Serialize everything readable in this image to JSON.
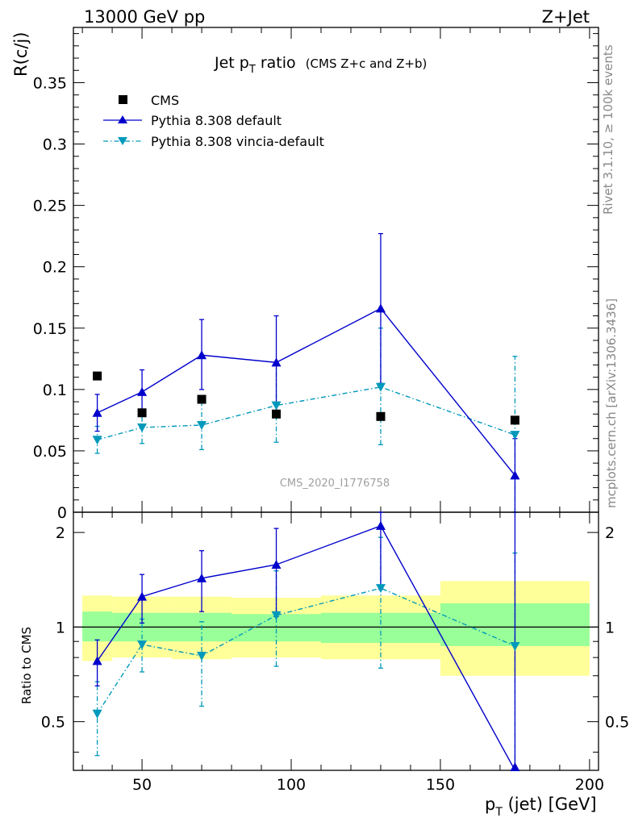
{
  "header": {
    "left_label": "13000 GeV pp",
    "right_label": "Z+Jet"
  },
  "side_labels": {
    "top": "Rivet 3.1.10, ≥ 100k events",
    "bottom": "mcplots.cern.ch [arXiv:1306.3436]"
  },
  "analysis_label": "CMS_2020_I1776758",
  "chart_data": [
    {
      "panel": "main",
      "type": "scatter",
      "title": "Jet p_T ratio (CMS  Z+c and Z+b)",
      "title_main": "Jet p",
      "title_sub": "T",
      "title_rest": " ratio",
      "title_paren": "(CMS  Z+c and Z+b)",
      "ylabel": "R(c/j)",
      "xlim": [
        27,
        203
      ],
      "ylim": [
        0,
        0.395
      ],
      "yticks": [
        0,
        0.05,
        0.1,
        0.15,
        0.2,
        0.25,
        0.3,
        0.35
      ],
      "ytick_labels": [
        "0",
        "0.05",
        "0.1",
        "0.15",
        "0.2",
        "0.25",
        "0.3",
        "0.35"
      ],
      "legend_position": "top-left",
      "series": [
        {
          "name": "CMS",
          "style": "black-square-markers",
          "color": "#000000",
          "x": [
            35,
            50,
            70,
            95,
            130,
            175
          ],
          "y": [
            0.111,
            0.081,
            0.092,
            0.08,
            0.078,
            0.075
          ],
          "err": [
            0.004,
            0.004,
            0.004,
            0.004,
            0.004,
            0.004
          ]
        },
        {
          "name": "Pythia 8.308 default",
          "style": "solid-line-up-triangle",
          "color": "#0000cc",
          "x": [
            35,
            50,
            70,
            95,
            130,
            175
          ],
          "y": [
            0.081,
            0.098,
            0.128,
            0.122,
            0.166,
            0.03
          ],
          "err_lo": [
            0.015,
            0.017,
            0.028,
            0.04,
            0.061,
            0.03
          ],
          "err_hi": [
            0.015,
            0.018,
            0.029,
            0.038,
            0.061,
            0.03
          ]
        },
        {
          "name": "Pythia 8.308 vincia-default",
          "style": "dash-dot-line-down-triangle",
          "color": "#0099bb",
          "x": [
            35,
            50,
            70,
            95,
            130,
            175
          ],
          "y": [
            0.059,
            0.069,
            0.071,
            0.087,
            0.102,
            0.063
          ],
          "err_lo": [
            0.011,
            0.013,
            0.02,
            0.03,
            0.047,
            0.063
          ],
          "err_hi": [
            0.011,
            0.014,
            0.021,
            0.033,
            0.048,
            0.064
          ]
        }
      ]
    },
    {
      "panel": "ratio",
      "type": "scatter",
      "ylabel": "Ratio to CMS",
      "xlabel": "p_T (jet) [GeV]",
      "xlabel_main": "p",
      "xlabel_sub": "T",
      "xlabel_rest": " (jet) [GeV]",
      "xlim": [
        27,
        203
      ],
      "ylim": [
        0.35,
        2.32
      ],
      "reference_line": 1,
      "yticks_major": [
        0.5,
        1,
        2
      ],
      "ytick_labels": [
        "0.5",
        "1",
        "2"
      ],
      "xticks": [
        50,
        100,
        150,
        200
      ],
      "xtick_labels": [
        "50",
        "100",
        "150",
        "200"
      ],
      "bands": [
        {
          "x0": 30,
          "x1": 40,
          "yellow": [
            0.78,
            1.26
          ],
          "green": [
            0.9,
            1.12
          ]
        },
        {
          "x0": 40,
          "x1": 60,
          "yellow": [
            0.8,
            1.25
          ],
          "green": [
            0.9,
            1.11
          ]
        },
        {
          "x0": 60,
          "x1": 80,
          "yellow": [
            0.79,
            1.25
          ],
          "green": [
            0.9,
            1.11
          ]
        },
        {
          "x0": 80,
          "x1": 110,
          "yellow": [
            0.8,
            1.24
          ],
          "green": [
            0.9,
            1.1
          ]
        },
        {
          "x0": 110,
          "x1": 150,
          "yellow": [
            0.79,
            1.26
          ],
          "green": [
            0.89,
            1.11
          ]
        },
        {
          "x0": 150,
          "x1": 200,
          "yellow": [
            0.7,
            1.4
          ],
          "green": [
            0.87,
            1.19
          ]
        }
      ],
      "band_colors": {
        "yellow": "#ffff99",
        "green": "#99ff99"
      },
      "series": [
        {
          "name": "Pythia 8.308 default",
          "color": "#0000cc",
          "x": [
            35,
            50,
            70,
            95,
            130,
            175
          ],
          "y": [
            0.78,
            1.25,
            1.43,
            1.58,
            2.1,
            0.35
          ],
          "err_lo": [
            0.13,
            0.22,
            0.31,
            0.5,
            0.78,
            0.0
          ],
          "err_hi": [
            0.13,
            0.22,
            0.32,
            0.48,
            0.78,
            0.0
          ]
        },
        {
          "name": "Pythia 8.308 vincia-default",
          "color": "#0099bb",
          "x": [
            35,
            50,
            70,
            95,
            130,
            175
          ],
          "y": [
            0.53,
            0.88,
            0.81,
            1.09,
            1.33,
            0.87
          ],
          "err_lo": [
            0.14,
            0.16,
            0.25,
            0.34,
            0.59,
            0.52
          ],
          "err_hi": [
            0.14,
            0.18,
            0.23,
            0.42,
            0.6,
            0.85
          ]
        }
      ]
    }
  ]
}
